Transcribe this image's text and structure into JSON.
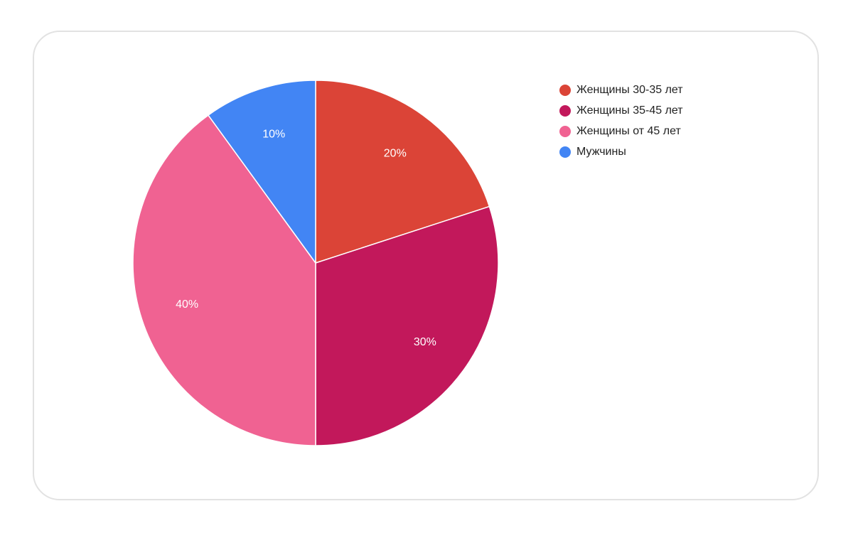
{
  "chart_data": {
    "type": "pie",
    "title": "",
    "categories": [
      "Женщины 30-35 лет",
      "Женщины 35-45 лет",
      "Женщины от 45 лет",
      "Мужчины"
    ],
    "values": [
      20,
      30,
      40,
      10
    ],
    "value_labels": [
      "20%",
      "30%",
      "40%",
      "10%"
    ],
    "colors": [
      "#db4437",
      "#c2185b",
      "#f06292",
      "#4285f4"
    ],
    "legend": "right"
  }
}
